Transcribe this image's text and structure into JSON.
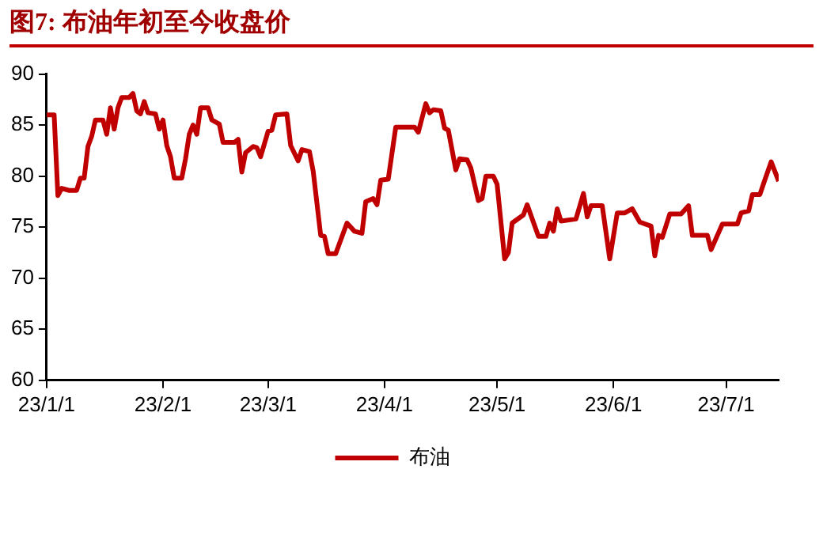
{
  "chart_data": {
    "type": "line",
    "title": "图7:   布油年初至今收盘价",
    "x": [
      "--01-01",
      "--01-03",
      "--01-04",
      "--01-05",
      "--01-07",
      "--01-09",
      "--01-10",
      "--01-11",
      "--01-12",
      "--01-13",
      "--01-14",
      "--01-16",
      "--01-17",
      "--01-18",
      "--01-19",
      "--01-20",
      "--01-21",
      "--01-23",
      "--01-24",
      "--01-25",
      "--01-26",
      "--01-27",
      "--01-28",
      "--01-30",
      "--01-31",
      "--02-01",
      "--02-02",
      "--02-03",
      "--02-04",
      "--02-06",
      "--02-07",
      "--02-08",
      "--02-09",
      "--02-10",
      "--02-11",
      "--02-13",
      "--02-14",
      "--02-16",
      "--02-17",
      "--02-20",
      "--02-21",
      "--02-22",
      "--02-23",
      "--02-25",
      "--02-26",
      "--02-27",
      "--03-01",
      "--03-02",
      "--03-03",
      "--03-06",
      "--03-07",
      "--03-09",
      "--03-10",
      "--03-12",
      "--03-13",
      "--03-15",
      "--03-16",
      "--03-17",
      "--03-19",
      "--03-22",
      "--03-24",
      "--03-26",
      "--03-27",
      "--03-29",
      "--03-30",
      "--03-31",
      "--04-02",
      "--04-04",
      "--04-09",
      "--04-10",
      "--04-12",
      "--04-13",
      "--04-14",
      "--04-16",
      "--04-17",
      "--04-18",
      "--04-20",
      "--04-21",
      "--04-23",
      "--04-24",
      "--04-26",
      "--04-27",
      "--04-28",
      "--04-30",
      "--05-01",
      "--05-03",
      "--05-04",
      "--05-05",
      "--05-08",
      "--05-09",
      "--05-12",
      "--05-14",
      "--05-15",
      "--05-16",
      "--05-17",
      "--05-18",
      "--05-22",
      "--05-24",
      "--05-25",
      "--05-26",
      "--05-29",
      "--05-31",
      "--06-02",
      "--06-04",
      "--06-06",
      "--06-08",
      "--06-11",
      "--06-12",
      "--06-13",
      "--06-14",
      "--06-16",
      "--06-19",
      "--06-21",
      "--06-22",
      "--06-26",
      "--06-27",
      "--06-30",
      "--07-04",
      "--07-05",
      "--07-07",
      "--07-08",
      "--07-10",
      "--07-11",
      "--07-13",
      "--07-15"
    ],
    "series": [
      {
        "name": "布油",
        "color": "#c00000",
        "values": [
          86,
          86,
          78.1,
          78.8,
          78.6,
          78.6,
          79.8,
          79.8,
          82.9,
          83.9,
          85.5,
          85.5,
          84.1,
          86.7,
          84.6,
          86.7,
          87.7,
          87.7,
          88.1,
          86.4,
          86.1,
          87.3,
          86.2,
          86.1,
          84.6,
          85.5,
          83,
          81.9,
          79.8,
          79.8,
          81.7,
          84.1,
          85,
          84.1,
          86.7,
          86.7,
          85.5,
          85.1,
          83.3,
          83.3,
          83.6,
          80.4,
          82.3,
          82.9,
          82.8,
          81.9,
          84.4,
          84.5,
          86,
          86.1,
          83,
          81.5,
          82.6,
          82.4,
          80.5,
          74.2,
          74.1,
          72.4,
          72.4,
          75.4,
          74.6,
          74.4,
          77.5,
          77.8,
          77.2,
          79.6,
          79.7,
          84.8,
          84.8,
          84.3,
          87.1,
          86.2,
          86.5,
          86.4,
          84.7,
          84.5,
          80.6,
          81.7,
          81.6,
          80.8,
          77.6,
          77.8,
          80,
          80,
          79.2,
          71.9,
          72.5,
          75.4,
          76.2,
          77.2,
          74.1,
          74.1,
          75.4,
          74.6,
          76.8,
          75.6,
          75.8,
          78.3,
          76,
          77.1,
          77.1,
          71.9,
          76.4,
          76.4,
          76.8,
          75.5,
          75.1,
          72.2,
          74.2,
          74,
          76.3,
          76.3,
          77.1,
          74.2,
          74.2,
          72.8,
          75.3,
          75.3,
          76.4,
          76.6,
          78.2,
          78.2,
          79.3,
          81.4,
          79.5
        ]
      }
    ],
    "xlim": [
      "--01-01",
      "--07-15"
    ],
    "xticks": [
      {
        "value": "--01-01",
        "label": "23/1/1"
      },
      {
        "value": "--02-01",
        "label": "23/2/1"
      },
      {
        "value": "--03-01",
        "label": "23/3/1"
      },
      {
        "value": "--04-01",
        "label": "23/4/1"
      },
      {
        "value": "--05-01",
        "label": "23/5/1"
      },
      {
        "value": "--06-01",
        "label": "23/6/1"
      },
      {
        "value": "--07-01",
        "label": "23/7/1"
      }
    ],
    "ylim": [
      60,
      90
    ],
    "yticks": [
      60,
      65,
      70,
      75,
      80,
      85,
      90
    ],
    "grid": false,
    "legend": "bottom",
    "marker": "none",
    "line_style": "solid"
  }
}
